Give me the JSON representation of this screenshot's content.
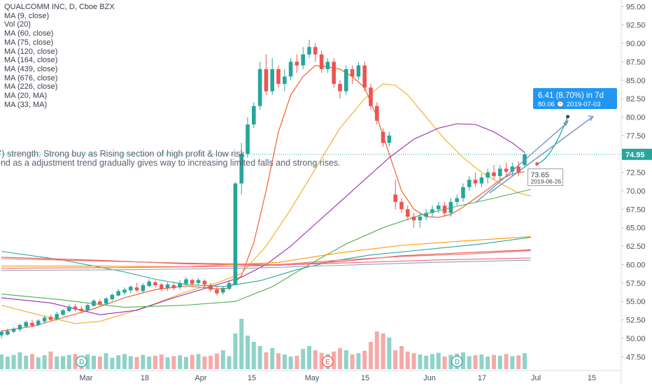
{
  "chart_data": {
    "type": "candlestick",
    "title": "QUALCOMM INC, D, Cboe BZX",
    "indicators": [
      "MA (9, close)",
      "Vol (20)",
      "MA (60, close)",
      "MA (75, close)",
      "MA (120, close)",
      "MA (164, close)",
      "MA (439, close)",
      "MA (676, close)",
      "MA (226, close)",
      "MA (20, MA)",
      "MA (33, MA)"
    ],
    "annotation_lines": [
      "Y) strength: Strong buy as Rising section of high profit & low risk",
      "end as a adjustment trend gradually gives way to increasing limited falls and strong rises."
    ],
    "y_axis": {
      "ticks": [
        47.5,
        50.0,
        52.5,
        55.0,
        57.5,
        60.0,
        62.5,
        65.0,
        67.5,
        70.0,
        72.5,
        75.0,
        77.5,
        80.0,
        82.5,
        85.0,
        87.5,
        90.0,
        92.5,
        95.0
      ],
      "range": [
        46.2,
        95.5
      ]
    },
    "x_axis": {
      "labels": [
        "Mar",
        "18",
        "Apr",
        "15",
        "May",
        "15",
        "Jun",
        "17",
        "Jul",
        "15"
      ]
    },
    "last_price": "74.95",
    "candles": [
      [
        50.4,
        50.9,
        50.0,
        51.1
      ],
      [
        50.5,
        51.0,
        50.4,
        51.3
      ],
      [
        50.9,
        51.3,
        50.7,
        51.5
      ],
      [
        51.2,
        51.8,
        50.9,
        52.0
      ],
      [
        51.6,
        52.2,
        51.5,
        52.4
      ],
      [
        52.1,
        51.7,
        51.5,
        52.5
      ],
      [
        51.8,
        52.4,
        51.6,
        52.6
      ],
      [
        52.3,
        52.8,
        52.0,
        53.1
      ],
      [
        52.9,
        52.5,
        52.3,
        53.2
      ],
      [
        52.6,
        53.3,
        52.4,
        53.6
      ],
      [
        53.2,
        53.8,
        53.0,
        54.0
      ],
      [
        53.7,
        54.3,
        53.5,
        54.6
      ],
      [
        54.3,
        53.9,
        53.7,
        54.7
      ],
      [
        54.0,
        53.7,
        53.4,
        54.4
      ],
      [
        53.8,
        54.5,
        53.6,
        54.7
      ],
      [
        54.4,
        55.1,
        54.3,
        55.3
      ],
      [
        55.0,
        54.6,
        54.3,
        55.3
      ],
      [
        54.7,
        55.4,
        54.5,
        55.6
      ],
      [
        55.3,
        55.9,
        55.1,
        56.1
      ],
      [
        55.8,
        56.4,
        55.7,
        56.7
      ],
      [
        56.2,
        56.6,
        55.9,
        56.9
      ],
      [
        56.5,
        57.0,
        56.1,
        57.2
      ],
      [
        56.9,
        56.5,
        56.3,
        57.5
      ],
      [
        56.4,
        57.2,
        56.2,
        57.5
      ],
      [
        57.1,
        57.7,
        56.9,
        58.0
      ],
      [
        57.6,
        57.2,
        56.9,
        57.9
      ],
      [
        57.3,
        56.7,
        56.4,
        57.5
      ],
      [
        56.8,
        57.3,
        56.4,
        57.6
      ],
      [
        57.2,
        56.8,
        56.5,
        57.5
      ],
      [
        56.9,
        57.5,
        56.6,
        57.9
      ],
      [
        57.4,
        58.0,
        57.2,
        58.3
      ],
      [
        57.9,
        57.4,
        57.1,
        58.1
      ],
      [
        57.5,
        57.9,
        57.2,
        58.2
      ],
      [
        57.8,
        57.3,
        57.0,
        58.0
      ],
      [
        57.2,
        56.6,
        56.3,
        57.5
      ],
      [
        56.6,
        56.1,
        55.8,
        57.0
      ],
      [
        56.2,
        56.8,
        55.9,
        57.1
      ],
      [
        56.7,
        57.5,
        56.5,
        57.9
      ],
      [
        57.3,
        71.0,
        57.2,
        71.2
      ],
      [
        71.0,
        75.0,
        69.5,
        76.5
      ],
      [
        75.0,
        79.0,
        74.5,
        80.0
      ],
      [
        79.0,
        81.5,
        78.5,
        82.0
      ],
      [
        81.5,
        86.5,
        81.0,
        87.5
      ],
      [
        86.5,
        83.5,
        83.0,
        88.5
      ],
      [
        83.5,
        86.5,
        83.0,
        88.0
      ],
      [
        86.5,
        84.5,
        84.0,
        87.0
      ],
      [
        84.5,
        85.5,
        83.5,
        86.5
      ],
      [
        85.5,
        87.5,
        85.0,
        88.0
      ],
      [
        87.5,
        87.0,
        86.0,
        88.5
      ],
      [
        87.0,
        88.5,
        86.5,
        89.5
      ],
      [
        88.5,
        89.5,
        88.0,
        90.5
      ],
      [
        89.5,
        88.5,
        87.5,
        90.0
      ],
      [
        88.5,
        86.5,
        86.0,
        89.0
      ],
      [
        86.5,
        87.5,
        86.0,
        88.0
      ],
      [
        87.5,
        84.5,
        84.0,
        88.0
      ],
      [
        84.5,
        83.5,
        82.5,
        85.0
      ],
      [
        83.5,
        86.5,
        83.0,
        87.0
      ],
      [
        86.5,
        85.5,
        84.5,
        87.0
      ],
      [
        85.5,
        87.0,
        85.0,
        87.5
      ],
      [
        87.0,
        84.0,
        83.5,
        87.5
      ],
      [
        84.0,
        81.5,
        81.0,
        84.5
      ],
      [
        81.5,
        79.5,
        79.0,
        82.0
      ],
      [
        78.0,
        76.5,
        76.0,
        78.5
      ],
      [
        76.5,
        77.5,
        76.0,
        78.0
      ],
      [
        69.5,
        68.5,
        67.5,
        71.5
      ],
      [
        68.5,
        67.5,
        67.0,
        69.0
      ],
      [
        67.5,
        66.5,
        66.0,
        68.0
      ],
      [
        66.5,
        66.0,
        65.0,
        67.0
      ],
      [
        66.0,
        66.5,
        65.0,
        67.0
      ],
      [
        66.5,
        67.0,
        66.0,
        67.5
      ],
      [
        67.0,
        67.5,
        66.5,
        68.0
      ],
      [
        67.5,
        68.0,
        67.0,
        68.5
      ],
      [
        68.0,
        67.0,
        66.5,
        68.5
      ],
      [
        67.0,
        68.5,
        66.5,
        69.0
      ],
      [
        68.5,
        69.0,
        68.0,
        69.5
      ],
      [
        69.0,
        70.5,
        68.5,
        71.0
      ],
      [
        70.5,
        71.5,
        70.0,
        72.0
      ],
      [
        71.5,
        71.0,
        70.5,
        72.5
      ],
      [
        71.0,
        71.8,
        70.5,
        72.3
      ],
      [
        71.8,
        72.5,
        71.0,
        73.0
      ],
      [
        72.5,
        72.0,
        71.5,
        73.5
      ],
      [
        72.0,
        73.0,
        71.5,
        73.5
      ],
      [
        73.0,
        72.6,
        72.0,
        73.8
      ],
      [
        72.6,
        73.3,
        72.0,
        73.8
      ],
      [
        73.3,
        72.5,
        72.0,
        74.0
      ],
      [
        73.5,
        74.95,
        73.3,
        75.2
      ]
    ],
    "volumes": [
      3.5,
      3.0,
      3.4,
      4.0,
      3.2,
      3.6,
      2.8,
      3.3,
      4.2,
      3.0,
      3.1,
      3.4,
      3.6,
      2.9,
      3.5,
      3.2,
      3.0,
      3.8,
      2.7,
      3.3,
      3.6,
      3.1,
      2.9,
      3.4,
      3.0,
      3.2,
      3.5,
      2.8,
      3.1,
      3.3,
      2.9,
      3.4,
      3.6,
      3.0,
      3.2,
      3.7,
      4.5,
      3.1,
      8.5,
      12.0,
      8.0,
      6.5,
      5.5,
      4.0,
      5.0,
      3.8,
      3.5,
      3.0,
      3.2,
      4.8,
      5.5,
      4.5,
      3.9,
      3.6,
      4.2,
      5.0,
      4.5,
      3.5,
      3.8,
      4.4,
      6.5,
      9.0,
      8.5,
      7.5,
      4.5,
      5.5,
      4.2,
      3.8,
      3.5,
      3.2,
      3.6,
      3.9,
      3.0,
      3.4,
      3.7,
      4.0,
      3.1,
      3.3,
      3.5,
      3.0,
      3.4,
      3.2,
      3.6,
      3.1,
      3.3,
      3.8
    ],
    "moving_averages": [
      {
        "indicator": "MA (9, close)",
        "color": "#f4511e",
        "values": [
          [
            0,
            51.0
          ],
          [
            5,
            51.6
          ],
          [
            10,
            52.8
          ],
          [
            15,
            54.0
          ],
          [
            20,
            55.5
          ],
          [
            25,
            56.6
          ],
          [
            30,
            57.1
          ],
          [
            35,
            56.7
          ],
          [
            37,
            56.8
          ],
          [
            39,
            58.5
          ],
          [
            41,
            63.0
          ],
          [
            43,
            70.0
          ],
          [
            45,
            78.0
          ],
          [
            47,
            83.0
          ],
          [
            49,
            85.5
          ],
          [
            51,
            87.0
          ],
          [
            53,
            86.8
          ],
          [
            55,
            86.5
          ],
          [
            57,
            85.5
          ],
          [
            59,
            84.0
          ],
          [
            61,
            80.0
          ],
          [
            63,
            75.0
          ],
          [
            65,
            70.0
          ],
          [
            67,
            67.5
          ],
          [
            69,
            66.5
          ],
          [
            71,
            66.4
          ],
          [
            73,
            66.8
          ],
          [
            75,
            67.8
          ],
          [
            77,
            69.0
          ],
          [
            79,
            70.2
          ],
          [
            81,
            71.5
          ],
          [
            83,
            72.3
          ],
          [
            85,
            72.6
          ]
        ]
      },
      {
        "indicator": "MA (60, close)",
        "color": "#f7a823",
        "values": [
          [
            0,
            54.5
          ],
          [
            6,
            53.2
          ],
          [
            12,
            52.0
          ],
          [
            16,
            52.3
          ],
          [
            20,
            53.3
          ],
          [
            25,
            54.7
          ],
          [
            30,
            56.3
          ],
          [
            35,
            57.5
          ],
          [
            39,
            58.8
          ],
          [
            43,
            62.5
          ],
          [
            47,
            67.5
          ],
          [
            51,
            73.0
          ],
          [
            55,
            78.5
          ],
          [
            59,
            82.5
          ],
          [
            62,
            84.5
          ],
          [
            64,
            84.3
          ],
          [
            66,
            83.0
          ],
          [
            69,
            80.0
          ],
          [
            72,
            77.0
          ],
          [
            75,
            74.5
          ],
          [
            78,
            72.5
          ],
          [
            81,
            71.0
          ],
          [
            84,
            69.7
          ],
          [
            86,
            69.3
          ]
        ]
      },
      {
        "indicator": "MA (75, close)",
        "color": "#9c27b0",
        "values": [
          [
            0,
            55.5
          ],
          [
            8,
            54.8
          ],
          [
            16,
            53.2
          ],
          [
            22,
            53.8
          ],
          [
            28,
            55.5
          ],
          [
            34,
            57.0
          ],
          [
            39,
            58.3
          ],
          [
            43,
            60.0
          ],
          [
            47,
            62.5
          ],
          [
            51,
            65.5
          ],
          [
            55,
            68.5
          ],
          [
            59,
            71.5
          ],
          [
            63,
            74.5
          ],
          [
            67,
            77.0
          ],
          [
            71,
            78.5
          ],
          [
            74,
            79.1
          ],
          [
            77,
            79.0
          ],
          [
            80,
            78.0
          ],
          [
            83,
            76.5
          ],
          [
            85,
            75.2
          ]
        ]
      },
      {
        "indicator": "MA (120, close)",
        "color": "#4caf50",
        "values": [
          [
            0,
            56.0
          ],
          [
            10,
            55.2
          ],
          [
            20,
            54.2
          ],
          [
            30,
            54.5
          ],
          [
            38,
            55.0
          ],
          [
            44,
            57.0
          ],
          [
            50,
            60.0
          ],
          [
            56,
            62.8
          ],
          [
            62,
            65.0
          ],
          [
            68,
            66.7
          ],
          [
            74,
            67.9
          ],
          [
            80,
            69.0
          ],
          [
            86,
            70.2
          ]
        ]
      },
      {
        "indicator": "MA (164, close)",
        "color": "#26a69a",
        "values": [
          [
            0,
            61.8
          ],
          [
            10,
            60.6
          ],
          [
            20,
            59.0
          ],
          [
            25,
            58.0
          ],
          [
            30,
            57.3
          ],
          [
            36,
            57.0
          ],
          [
            42,
            57.8
          ],
          [
            48,
            59.3
          ],
          [
            54,
            60.5
          ],
          [
            60,
            61.3
          ],
          [
            66,
            61.8
          ],
          [
            72,
            62.3
          ],
          [
            78,
            62.8
          ],
          [
            86,
            63.7
          ]
        ]
      },
      {
        "indicator": "MA (439, close)",
        "color": "#ef5350",
        "values": [
          [
            0,
            61.0
          ],
          [
            15,
            60.6
          ],
          [
            30,
            60.1
          ],
          [
            45,
            59.9
          ],
          [
            55,
            60.4
          ],
          [
            65,
            61.2
          ],
          [
            75,
            61.6
          ],
          [
            86,
            62.0
          ]
        ]
      },
      {
        "indicator": "MA (676, close)",
        "color": "#ff9800",
        "values": [
          [
            0,
            59.8
          ],
          [
            15,
            59.8
          ],
          [
            30,
            59.7
          ],
          [
            45,
            60.3
          ],
          [
            55,
            61.6
          ],
          [
            65,
            62.6
          ],
          [
            75,
            63.2
          ],
          [
            86,
            63.8
          ]
        ]
      },
      {
        "indicator": "MA (226, close)",
        "color": "#e57373",
        "values": [
          [
            0,
            60.8
          ],
          [
            15,
            60.5
          ],
          [
            30,
            60.2
          ],
          [
            45,
            60.0
          ],
          [
            55,
            60.6
          ],
          [
            65,
            61.1
          ],
          [
            75,
            61.4
          ],
          [
            86,
            61.9
          ]
        ]
      },
      {
        "indicator": "MA (20, MA)",
        "color": "#f06292",
        "values": [
          [
            0,
            59.5
          ],
          [
            20,
            59.6
          ],
          [
            40,
            59.8
          ],
          [
            55,
            60.2
          ],
          [
            70,
            60.6
          ],
          [
            86,
            60.9
          ]
        ]
      },
      {
        "indicator": "MA (33, MA)",
        "color": "#90a4ae",
        "values": [
          [
            0,
            59.2
          ],
          [
            20,
            59.3
          ],
          [
            40,
            59.5
          ],
          [
            55,
            59.9
          ],
          [
            70,
            60.3
          ],
          [
            86,
            60.6
          ]
        ]
      }
    ],
    "projection": {
      "label": "6.41 (8.70%) in 7d",
      "sublabel": "80.06  ⌚ 2019-07-03",
      "from": [
        87,
        73.65
      ],
      "to": [
        92,
        80.06
      ],
      "start_label": "73.65",
      "start_date": "2019-06-26"
    },
    "event_markers": [
      {
        "label": "D",
        "x": 13
      },
      {
        "label": "E",
        "x": 53
      },
      {
        "label": "D",
        "x": 74
      }
    ]
  }
}
